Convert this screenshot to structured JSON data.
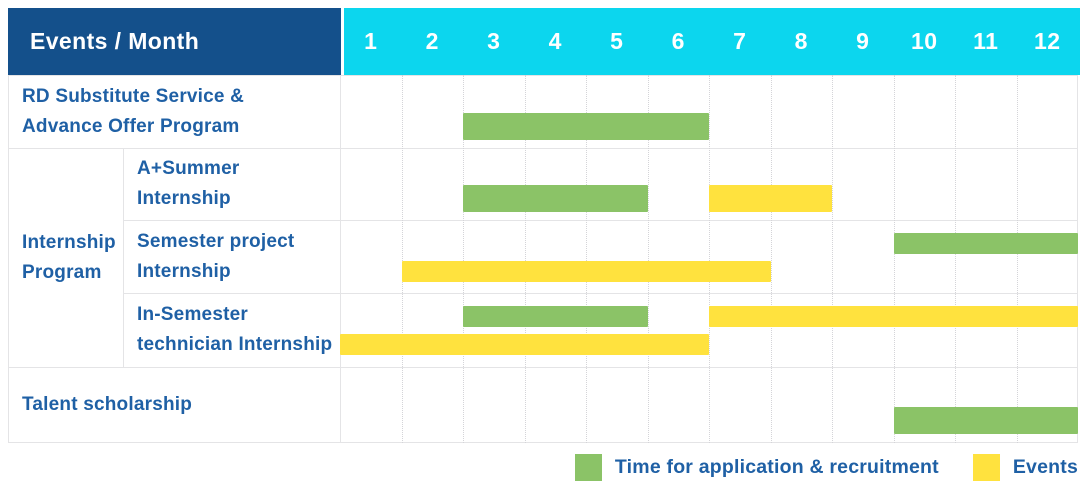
{
  "header": {
    "title": "Events / Month",
    "months": [
      "1",
      "2",
      "3",
      "4",
      "5",
      "6",
      "7",
      "8",
      "9",
      "10",
      "11",
      "12"
    ]
  },
  "legend": {
    "items": [
      {
        "key": "application",
        "label": "Time for application & recruitment"
      },
      {
        "key": "event",
        "label": "Events"
      }
    ]
  },
  "colors": {
    "header_bg": "#14508B",
    "month_header_bg": "#0CD6EE",
    "header_text": "#FFFFFF",
    "label_text": "#1F60A5",
    "application": "#8BC367",
    "event": "#FFE23E",
    "grid_solid": "#E4E4E6",
    "grid_dotted": "#D4D4D8"
  },
  "chart_data": {
    "type": "bar",
    "subtype": "gantt-schedule",
    "title": "Events / Month",
    "x_unit": "month",
    "x_range": [
      1,
      12
    ],
    "grid": true,
    "legend_position": "bottom-right",
    "legend_entries": [
      "Time for application & recruitment",
      "Events"
    ],
    "groups": [
      {
        "label": "Internship Program",
        "label_lines": [
          "Internship",
          "Program"
        ],
        "row_indices": [
          1,
          2,
          3
        ]
      }
    ],
    "rows": [
      {
        "label": "RD Substitute Service & Advance Offer Program",
        "label_lines": [
          "RD Substitute Service &",
          "Advance Offer Program"
        ],
        "group": null,
        "bars": [
          {
            "kind": "application",
            "start_month": 3,
            "end_month": 6,
            "lane": "single"
          }
        ]
      },
      {
        "label": "A+Summer Internship",
        "label_lines": [
          "A+Summer",
          "Internship"
        ],
        "group": "Internship Program",
        "bars": [
          {
            "kind": "application",
            "start_month": 3,
            "end_month": 5,
            "lane": "single"
          },
          {
            "kind": "event",
            "start_month": 7,
            "end_month": 8,
            "lane": "single"
          }
        ]
      },
      {
        "label": "Semester project Internship",
        "label_lines": [
          "Semester project",
          "Internship"
        ],
        "group": "Internship Program",
        "bars": [
          {
            "kind": "application",
            "start_month": 10,
            "end_month": 12,
            "lane": "top"
          },
          {
            "kind": "event",
            "start_month": 2,
            "end_month": 7,
            "lane": "bottom"
          }
        ]
      },
      {
        "label": "In-Semester technician Internship",
        "label_lines": [
          "In-Semester",
          "technician Internship"
        ],
        "group": "Internship Program",
        "bars": [
          {
            "kind": "application",
            "start_month": 3,
            "end_month": 5,
            "lane": "top"
          },
          {
            "kind": "event",
            "start_month": 7,
            "end_month": 12,
            "lane": "top"
          },
          {
            "kind": "event",
            "start_month": 1,
            "end_month": 6,
            "lane": "bottom"
          }
        ]
      },
      {
        "label": "Talent scholarship",
        "label_lines": [
          "Talent scholarship"
        ],
        "group": null,
        "bars": [
          {
            "kind": "application",
            "start_month": 10,
            "end_month": 12,
            "lane": "single"
          }
        ]
      }
    ]
  }
}
